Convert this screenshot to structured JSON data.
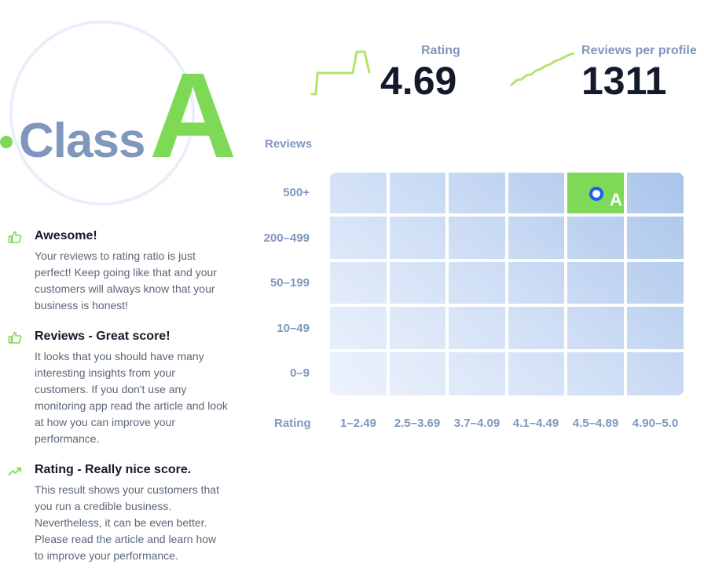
{
  "class_badge": {
    "word": "Class",
    "letter": "A"
  },
  "stats": {
    "rating": {
      "label": "Rating",
      "value": "4.69"
    },
    "reviews": {
      "label": "Reviews per profile",
      "value": "1311"
    }
  },
  "feedback": [
    {
      "icon": "thumbs-up-icon",
      "title": "Awesome!",
      "text": "Your reviews to rating ratio is just perfect! Keep going like that and your customers will always know that your business is honest!"
    },
    {
      "icon": "thumbs-up-icon",
      "title": "Reviews - Great score!",
      "text": "It looks that you should have many interesting insights from your customers. If you don't use any monitoring app read the article and look at how you can improve your performance."
    },
    {
      "icon": "trending-up-icon",
      "title": "Rating - Really nice score.",
      "text": "This result shows your customers that you run a credible business. Nevertheless, it can be even better. Please read the article and learn how to improve your performance."
    }
  ],
  "matrix": {
    "y_axis_title": "Reviews",
    "x_axis_title": "Rating",
    "rows": [
      "500+",
      "200–499",
      "50–199",
      "10–49",
      "0–9"
    ],
    "columns": [
      "1–2.49",
      "2.5–3.69",
      "3.7–4.09",
      "4.1–4.49",
      "4.5–4.89",
      "4.90–5.0"
    ],
    "active_row": 0,
    "active_col": 4,
    "active_label": "A"
  },
  "colors": {
    "accent_green": "#7ed957",
    "label_blue_grey": "#7f97bd",
    "marker_blue": "#1f5cf0",
    "text_dark": "#141a2b"
  }
}
